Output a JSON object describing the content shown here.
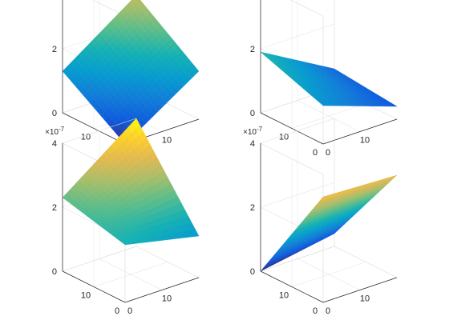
{
  "figure": {
    "background": "#ffffff",
    "grid": true,
    "colormap": "parula"
  },
  "chart_data": [
    {
      "type": "surface",
      "title": "",
      "xlabel": "",
      "ylabel": "",
      "zlabel": "",
      "exponent_label": "×10",
      "exponent_sup": "-7",
      "x_ticks": [
        "0",
        "10"
      ],
      "y_ticks": [
        "0",
        "10"
      ],
      "z_ticks": [
        "0",
        "2",
        "4"
      ],
      "xlim": [
        0,
        20
      ],
      "ylim": [
        0,
        20
      ],
      "zlim": [
        0,
        4e-07
      ],
      "grid": true,
      "corners": {
        "x0y0": 0.0,
        "x1y0": 1.5e-07,
        "x0y1": 1.3e-07,
        "x1y1": 2.9e-07
      },
      "min_value": 0.0
    },
    {
      "type": "surface",
      "title": "",
      "xlabel": "",
      "ylabel": "",
      "zlabel": "",
      "exponent_label": "×10",
      "exponent_sup": "-7",
      "x_ticks": [
        "0",
        "10"
      ],
      "y_ticks": [
        "0",
        "10"
      ],
      "z_ticks": [
        "0",
        "2",
        "4"
      ],
      "xlim": [
        0,
        20
      ],
      "ylim": [
        0,
        20
      ],
      "zlim": [
        0,
        4e-07
      ],
      "grid": true,
      "corners": {
        "x0y0": 1.2e-07,
        "x1y0": 4e-08,
        "x0y1": 1.9e-07,
        "x1y1": 6e-08
      },
      "min_value": 0.0
    },
    {
      "type": "surface",
      "title": "",
      "xlabel": "",
      "ylabel": "",
      "zlabel": "",
      "exponent_label": "×10",
      "exponent_sup": "-7",
      "x_ticks": [
        "0",
        "10"
      ],
      "y_ticks": [
        "0",
        "10"
      ],
      "z_ticks": [
        "0",
        "2",
        "4"
      ],
      "xlim": [
        0,
        20
      ],
      "ylim": [
        0,
        20
      ],
      "zlim": [
        0,
        4e-07
      ],
      "grid": true,
      "corners": {
        "x0y0": 1.8e-07,
        "x1y0": 1.3e-07,
        "x0y1": 2.3e-07,
        "x1y1": 4e-07
      },
      "min_value": 0.0
    },
    {
      "type": "surface",
      "title": "",
      "xlabel": "",
      "ylabel": "",
      "zlabel": "",
      "exponent_label": "×10",
      "exponent_sup": "-7",
      "x_ticks": [
        "0",
        "10"
      ],
      "y_ticks": [
        "0",
        "10"
      ],
      "z_ticks": [
        "0",
        "2",
        "4"
      ],
      "xlim": [
        0,
        20
      ],
      "ylim": [
        0,
        20
      ],
      "zlim": [
        0,
        4e-07
      ],
      "grid": true,
      "corners": {
        "x0y0": 3.3e-07,
        "x1y0": 3.2e-07,
        "x0y1": 0.0,
        "x1y1": 4e-08
      },
      "min_value": 0.0
    }
  ]
}
